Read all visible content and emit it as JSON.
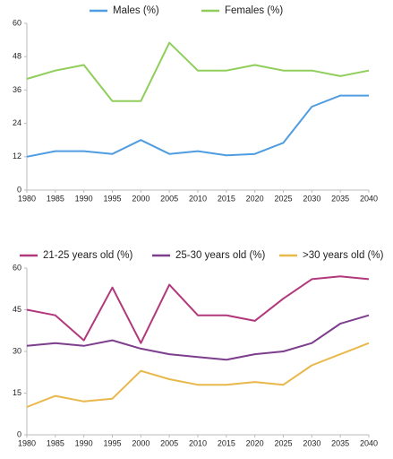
{
  "chart_data": [
    {
      "type": "line",
      "x": [
        1980,
        1985,
        1990,
        1995,
        2000,
        2005,
        2010,
        2015,
        2020,
        2025,
        2030,
        2035,
        2040
      ],
      "series": [
        {
          "name": "Males (%)",
          "color": "#4f9de0",
          "values": [
            12,
            14,
            14,
            13,
            18,
            13,
            14,
            12.5,
            13,
            17,
            30,
            34,
            34
          ]
        },
        {
          "name": "Females (%)",
          "color": "#8fce5a",
          "values": [
            40,
            43,
            45,
            32,
            32,
            53,
            43,
            43,
            45,
            43,
            43,
            41,
            43
          ]
        }
      ],
      "xlim": [
        1980,
        2040
      ],
      "xticks": [
        1980,
        1985,
        1990,
        1995,
        2000,
        2005,
        2010,
        2015,
        2020,
        2025,
        2030,
        2035,
        2040
      ],
      "ylim": [
        0,
        60
      ],
      "yticks": [
        0,
        12,
        24,
        36,
        48,
        60
      ],
      "grid": false,
      "legend": "top"
    },
    {
      "type": "line",
      "x": [
        1980,
        1985,
        1990,
        1995,
        2000,
        2005,
        2010,
        2015,
        2020,
        2025,
        2030,
        2035,
        2040
      ],
      "series": [
        {
          "name": "21-25 years old (%)",
          "color": "#b2387c",
          "values": [
            45,
            43,
            34,
            53,
            33,
            54,
            43,
            43,
            41,
            49,
            56,
            57,
            56
          ]
        },
        {
          "name": "25-30 years old (%)",
          "color": "#7d3e8e",
          "values": [
            32,
            33,
            32,
            34,
            31,
            29,
            28,
            27,
            29,
            30,
            33,
            40,
            43
          ]
        },
        {
          "name": ">30 years old (%)",
          "color": "#e8b84a",
          "values": [
            10,
            14,
            12,
            13,
            23,
            20,
            18,
            18,
            19,
            18,
            25,
            29,
            33
          ]
        }
      ],
      "xlim": [
        1980,
        2040
      ],
      "xticks": [
        1980,
        1985,
        1990,
        1995,
        2000,
        2005,
        2010,
        2015,
        2020,
        2025,
        2030,
        2035,
        2040
      ],
      "ylim": [
        0,
        60
      ],
      "yticks": [
        0,
        15,
        30,
        45,
        60
      ],
      "grid": false,
      "legend": "top"
    }
  ]
}
